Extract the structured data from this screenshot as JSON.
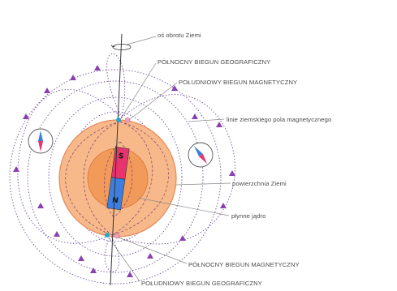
{
  "labels": {
    "rotation_axis": "oś obrotu Ziemi",
    "north_geographic_pole": "PÓŁNOCNY BIEGUN GEOGRAFICZNY",
    "south_magnetic_pole": "POŁUDNIOWY BIEGUN MAGNETYCZNY",
    "field_lines": "linie ziemskiego pola magnetycznego",
    "earth_surface": "powierzchnia Ziemi",
    "liquid_core": "płynne jądro",
    "north_magnetic_pole": "PÓŁNOCNY BIEGUN MAGNETYCZNY",
    "south_geographic_pole": "POŁUDNIOWY BIEGUN GEOGRAFICZNY"
  },
  "magnet": {
    "top_pole": "S",
    "bottom_pole": "N"
  },
  "colors": {
    "earth_outer": "#f7b98a",
    "earth_outer_edge": "#e8875a",
    "core": "#f29a5a",
    "magnet_south": "#e8336f",
    "magnet_north": "#3d7fe0",
    "field_arrows": "#8a3fb0",
    "geographic_pole_marker": "#2aa6c9",
    "magnetic_pole_marker": "#f5a0c0"
  }
}
